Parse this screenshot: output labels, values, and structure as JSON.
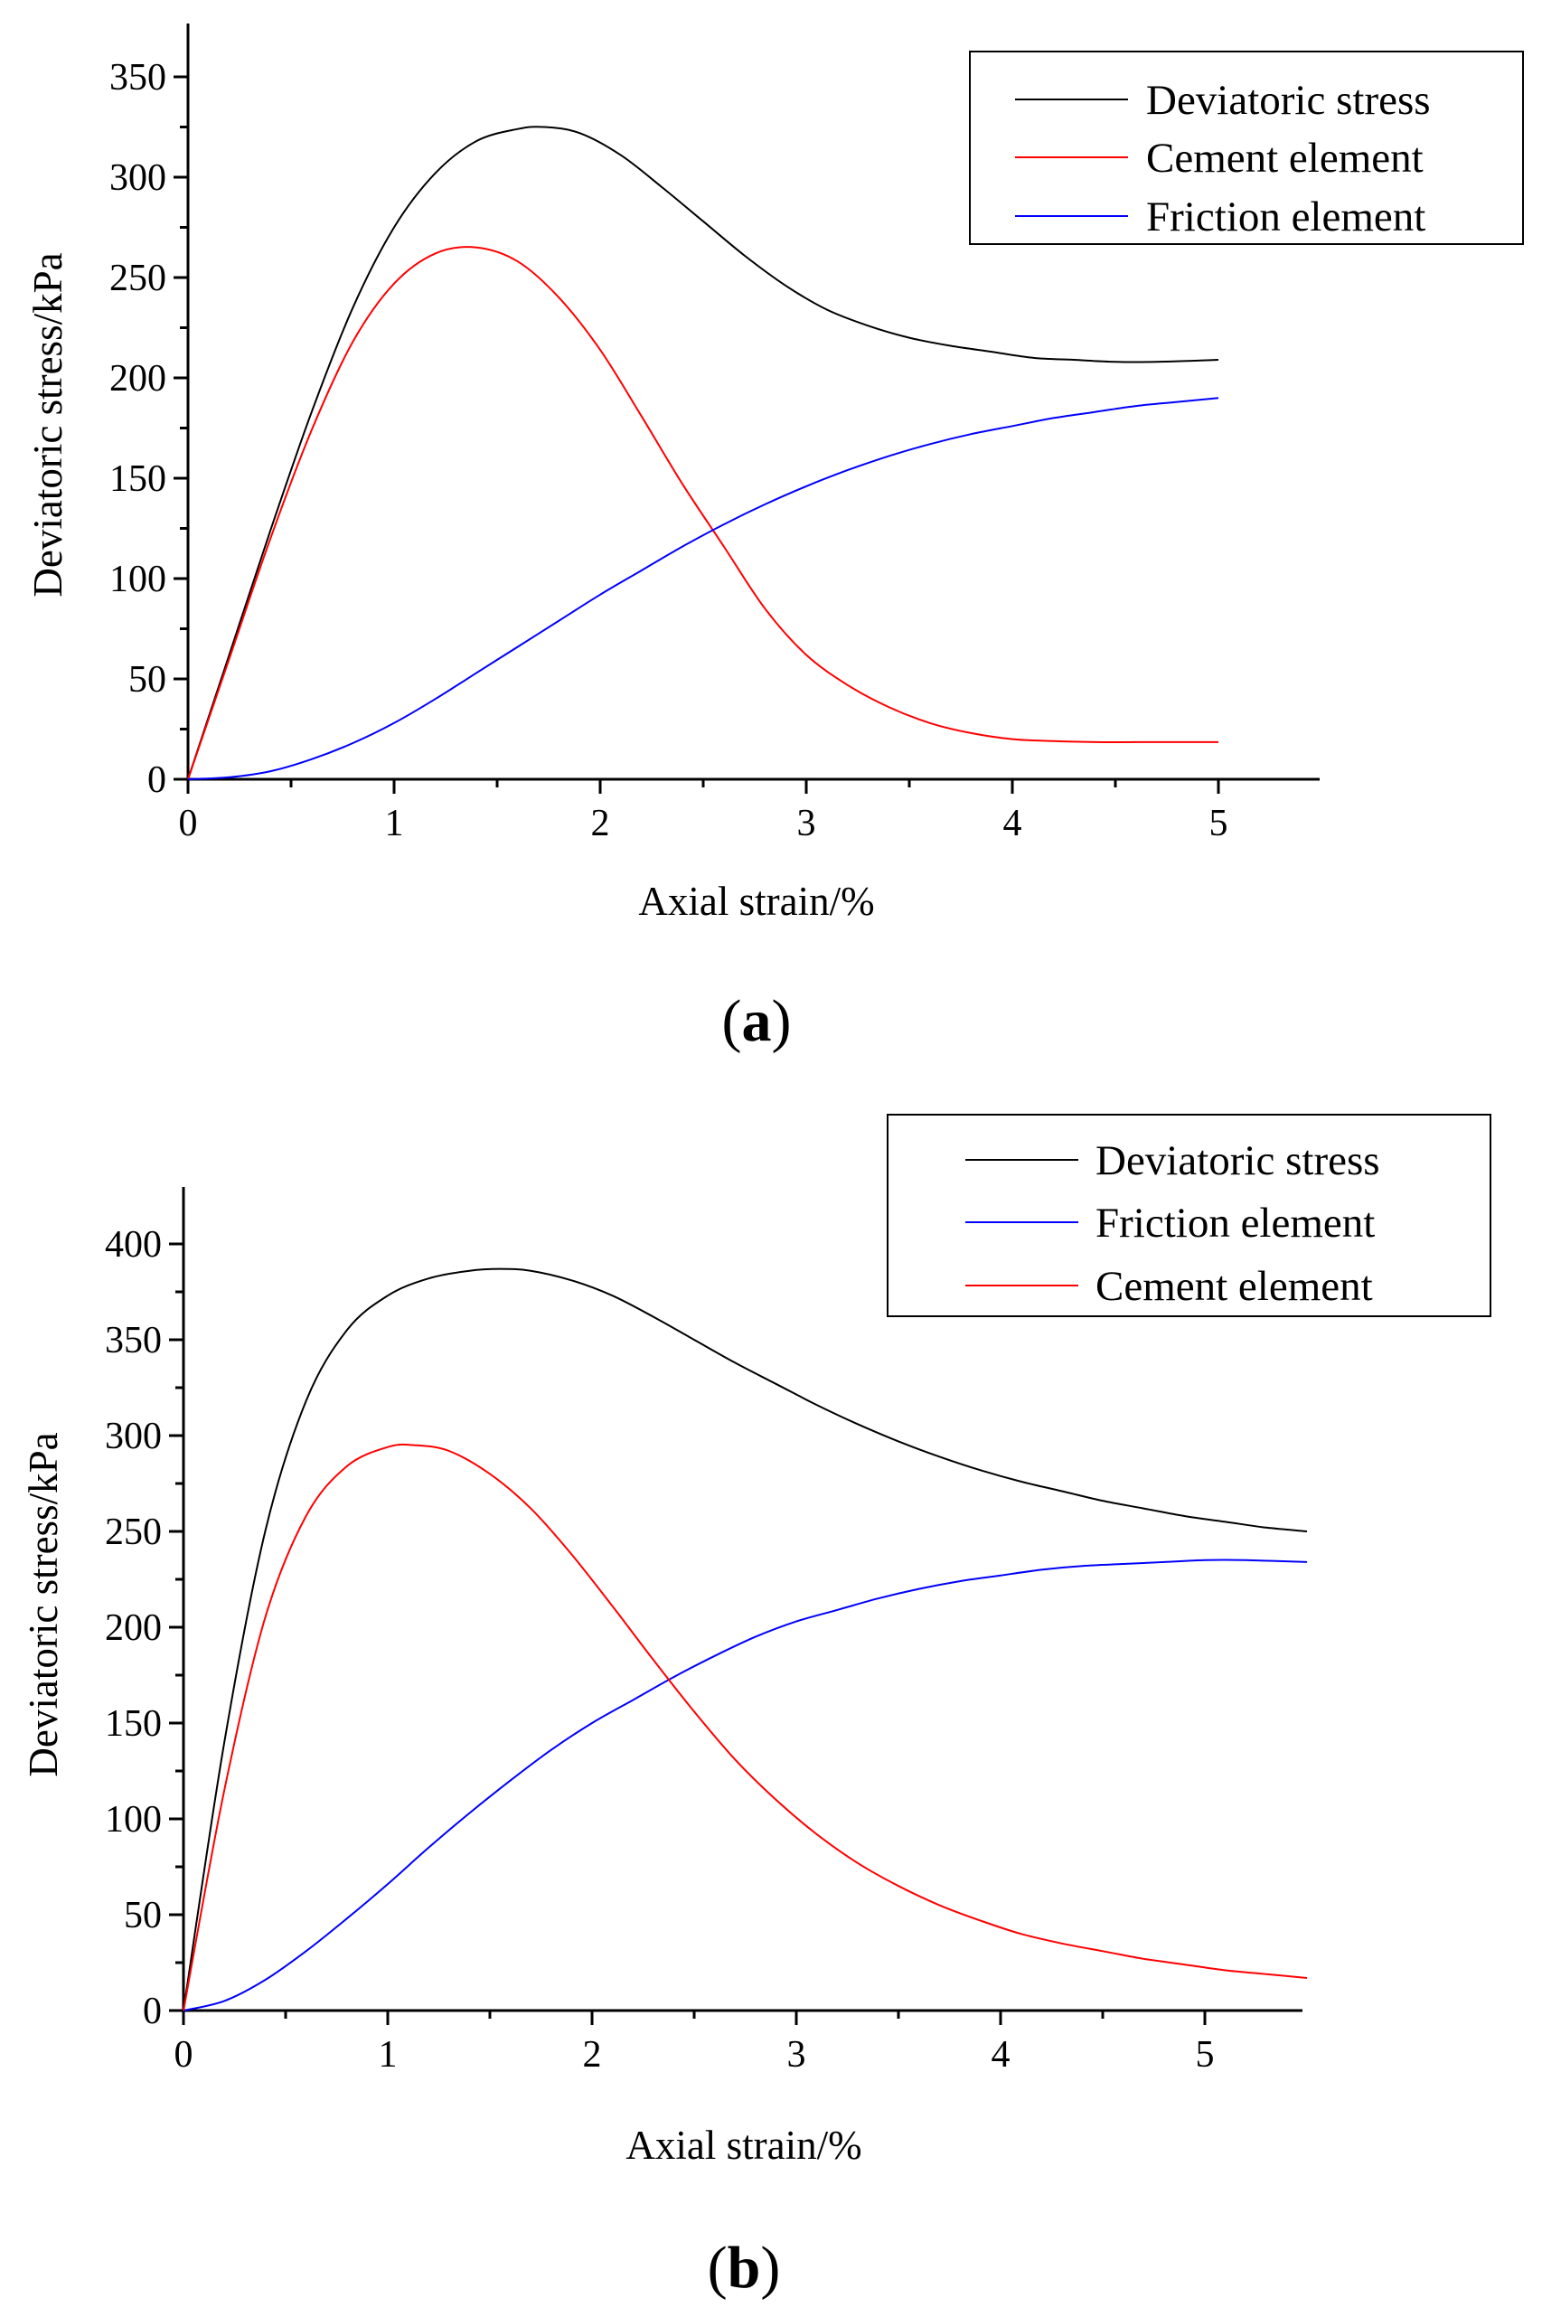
{
  "chart_data": [
    {
      "type": "line",
      "panel_label_open": "(",
      "panel_label_letter": "a",
      "panel_label_close": ")",
      "xlabel": "Axial strain/%",
      "ylabel": "Deviatoric stress/kPa",
      "xlim": [
        0,
        5.5
      ],
      "ylim": [
        0,
        375
      ],
      "x_ticks": [
        0,
        1,
        2,
        3,
        4,
        5
      ],
      "x_tick_labels": [
        "0",
        "1",
        "2",
        "3",
        "4",
        "5"
      ],
      "y_ticks": [
        0,
        50,
        100,
        150,
        200,
        250,
        300,
        350
      ],
      "y_tick_labels": [
        "0",
        "50",
        "100",
        "150",
        "200",
        "250",
        "300",
        "350"
      ],
      "legend_position": "top-right",
      "series": [
        {
          "name": "Deviatoric stress",
          "color": "#000000",
          "x": [
            0,
            0.2,
            0.4,
            0.6,
            0.8,
            1.0,
            1.2,
            1.4,
            1.6,
            1.73,
            1.9,
            2.1,
            2.3,
            2.5,
            2.7,
            2.9,
            3.1,
            3.3,
            3.5,
            3.7,
            3.9,
            4.1,
            4.3,
            4.5,
            4.7,
            5.0
          ],
          "y": [
            0,
            62,
            124,
            183,
            235,
            275,
            302,
            318,
            324,
            325,
            322,
            311,
            295,
            278,
            261,
            246,
            234,
            226,
            220,
            216,
            213,
            210,
            209,
            208,
            208,
            209
          ]
        },
        {
          "name": "Cement element",
          "color": "#ff0000",
          "x": [
            0,
            0.2,
            0.4,
            0.6,
            0.8,
            1.0,
            1.2,
            1.4,
            1.6,
            1.8,
            2.0,
            2.2,
            2.4,
            2.6,
            2.8,
            3.0,
            3.2,
            3.4,
            3.6,
            3.8,
            4.0,
            4.2,
            4.4,
            4.6,
            4.8,
            5.0
          ],
          "y": [
            0,
            60,
            120,
            174,
            218,
            247,
            262,
            265,
            258,
            240,
            214,
            181,
            147,
            116,
            85,
            62,
            47,
            36,
            28,
            23,
            20,
            19,
            18.5,
            18.5,
            18.5,
            18.5
          ]
        },
        {
          "name": "Friction element",
          "color": "#0000ff",
          "x": [
            0,
            0.2,
            0.4,
            0.6,
            0.8,
            1.0,
            1.2,
            1.4,
            1.6,
            1.8,
            2.0,
            2.2,
            2.4,
            2.6,
            2.8,
            3.0,
            3.2,
            3.4,
            3.6,
            3.8,
            4.0,
            4.2,
            4.4,
            4.6,
            4.8,
            5.0
          ],
          "y": [
            0,
            1,
            4,
            10,
            18,
            28,
            40,
            53,
            66,
            79,
            92,
            104,
            116,
            127,
            137,
            146,
            154,
            161,
            167,
            172,
            176,
            180,
            183,
            186,
            188,
            190
          ]
        }
      ]
    },
    {
      "type": "line",
      "panel_label_open": "(",
      "panel_label_letter": "b",
      "panel_label_close": ")",
      "xlabel": "Axial strain/%",
      "ylabel": "Deviatoric stress/kPa",
      "xlim": [
        0,
        5.5
      ],
      "ylim": [
        0,
        425
      ],
      "x_ticks": [
        0,
        1,
        2,
        3,
        4,
        5
      ],
      "x_tick_labels": [
        "0",
        "1",
        "2",
        "3",
        "4",
        "5"
      ],
      "y_ticks": [
        0,
        50,
        100,
        150,
        200,
        250,
        300,
        350,
        400
      ],
      "y_tick_labels": [
        "0",
        "50",
        "100",
        "150",
        "200",
        "250",
        "300",
        "350",
        "400"
      ],
      "legend_position": "top-right",
      "series": [
        {
          "name": "Deviatoric stress",
          "color": "#000000",
          "x": [
            0,
            0.2,
            0.4,
            0.6,
            0.8,
            1.0,
            1.2,
            1.4,
            1.55,
            1.7,
            1.9,
            2.1,
            2.3,
            2.5,
            2.7,
            2.9,
            3.1,
            3.3,
            3.5,
            3.7,
            3.9,
            4.1,
            4.3,
            4.5,
            4.7,
            4.9,
            5.1,
            5.3,
            5.5
          ],
          "y": [
            0,
            140,
            250,
            318,
            355,
            373,
            382,
            386,
            387,
            386,
            381,
            373,
            362,
            350,
            338,
            327,
            316,
            306,
            297,
            289,
            282,
            276,
            271,
            266,
            262,
            258,
            255,
            252,
            250
          ]
        },
        {
          "name": "Friction element",
          "color": "#0000ff",
          "x": [
            0,
            0.2,
            0.4,
            0.6,
            0.8,
            1.0,
            1.2,
            1.4,
            1.6,
            1.8,
            2.0,
            2.2,
            2.4,
            2.6,
            2.8,
            3.0,
            3.2,
            3.4,
            3.6,
            3.8,
            4.0,
            4.2,
            4.4,
            4.6,
            4.8,
            5.0,
            5.2,
            5.5
          ],
          "y": [
            0,
            5,
            16,
            31,
            48,
            66,
            85,
            103,
            120,
            136,
            150,
            162,
            174,
            185,
            195,
            203,
            209,
            215,
            220,
            224,
            227,
            230,
            232,
            233,
            234,
            235,
            235,
            234
          ]
        },
        {
          "name": "Cement element",
          "color": "#ff0000",
          "x": [
            0,
            0.2,
            0.4,
            0.6,
            0.8,
            1.0,
            1.13,
            1.3,
            1.5,
            1.7,
            1.9,
            2.1,
            2.3,
            2.5,
            2.7,
            2.9,
            3.1,
            3.3,
            3.5,
            3.7,
            3.9,
            4.1,
            4.3,
            4.5,
            4.7,
            4.9,
            5.1,
            5.3,
            5.5
          ],
          "y": [
            0,
            115,
            205,
            258,
            284,
            294,
            295,
            292,
            280,
            262,
            238,
            211,
            183,
            156,
            131,
            110,
            92,
            77,
            65,
            55,
            47,
            40,
            35,
            31,
            27,
            24,
            21,
            19,
            17
          ]
        }
      ]
    }
  ]
}
